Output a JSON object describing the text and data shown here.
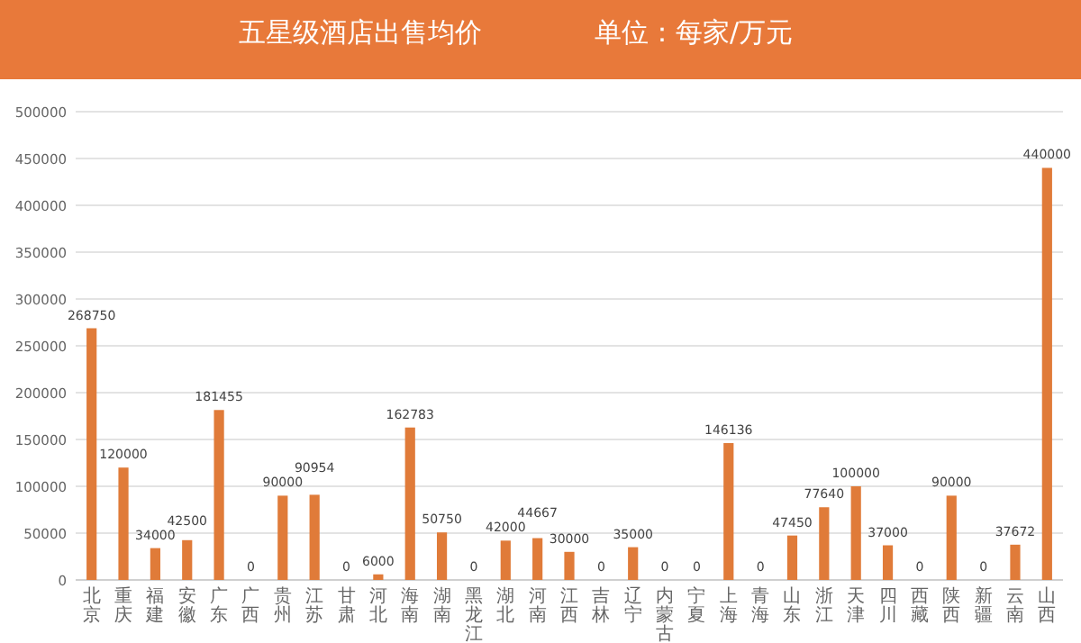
{
  "chart_data": {
    "type": "bar",
    "title": "五星级酒店出售均价",
    "subtitle": "单位：每家/万元",
    "categories": [
      "北京",
      "重庆",
      "福建",
      "安徽",
      "广东",
      "广西",
      "贵州",
      "江苏",
      "甘肃",
      "河北",
      "海南",
      "湖南",
      "黑龙江",
      "湖北",
      "河南",
      "江西",
      "吉林",
      "辽宁",
      "内蒙古",
      "宁夏",
      "上海",
      "青海",
      "山东",
      "浙江",
      "天津",
      "四川",
      "西藏",
      "陕西",
      "新疆",
      "云南",
      "山西"
    ],
    "values": [
      268750,
      120000,
      34000,
      42500,
      181455,
      0,
      90000,
      90954,
      0,
      6000,
      162783,
      50750,
      0,
      42000,
      44667,
      30000,
      0,
      35000,
      0,
      0,
      146136,
      0,
      47450,
      77640,
      100000,
      37000,
      0,
      90000,
      0,
      37672,
      440000
    ],
    "color": "#e07b39",
    "ylim": [
      0,
      500000
    ],
    "yticks": [
      0,
      50000,
      100000,
      150000,
      200000,
      250000,
      300000,
      350000,
      400000,
      450000,
      500000
    ],
    "grid": "y",
    "data_labels": true
  }
}
